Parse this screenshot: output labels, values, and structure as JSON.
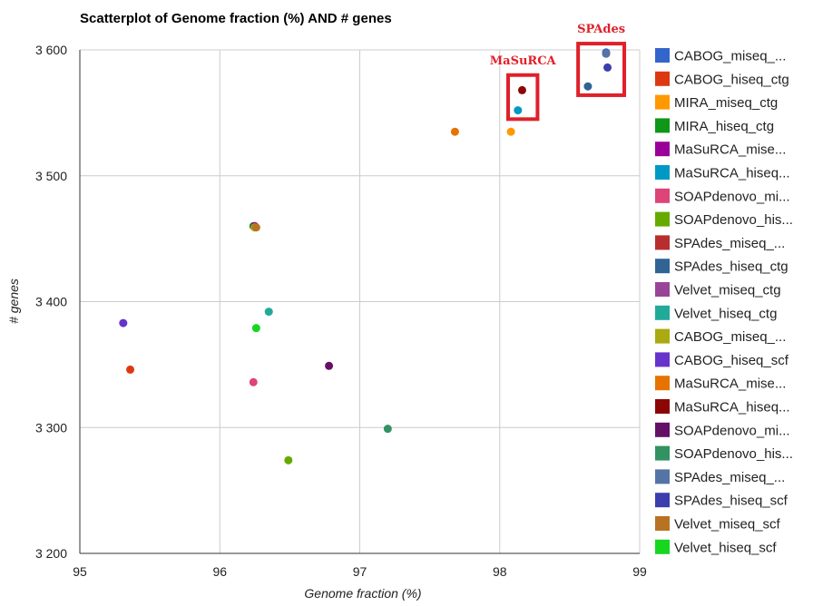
{
  "chart_data": {
    "type": "scatter",
    "title": "Scatterplot of Genome fraction (%) AND # genes",
    "xlabel": "Genome fraction (%)",
    "ylabel": "# genes",
    "xlim": [
      95,
      99
    ],
    "ylim": [
      3200,
      3600
    ],
    "x_ticks": [
      {
        "value": 95,
        "label": "95"
      },
      {
        "value": 96,
        "label": "96"
      },
      {
        "value": 97,
        "label": "97"
      },
      {
        "value": 98,
        "label": "98"
      },
      {
        "value": 99,
        "label": "99"
      }
    ],
    "y_ticks": [
      {
        "value": 3200,
        "label": "3 200"
      },
      {
        "value": 3300,
        "label": "3 300"
      },
      {
        "value": 3400,
        "label": "3 400"
      },
      {
        "value": 3500,
        "label": "3 500"
      },
      {
        "value": 3600,
        "label": "3 600"
      }
    ],
    "grid": true,
    "legend_position": "right",
    "series": [
      {
        "name": "CABOG_miseq_...",
        "color": "#3366cc",
        "x": 98.76,
        "y": 3598
      },
      {
        "name": "CABOG_hiseq_ctg",
        "color": "#dc3912",
        "x": 95.36,
        "y": 3346
      },
      {
        "name": "MIRA_miseq_ctg",
        "color": "#ff9900",
        "x": 98.08,
        "y": 3535
      },
      {
        "name": "MIRA_hiseq_ctg",
        "color": "#109618",
        "x": 96.24,
        "y": 3460
      },
      {
        "name": "MaSuRCA_mise...",
        "color": "#990099",
        "x": 96.25,
        "y": 3460
      },
      {
        "name": "MaSuRCA_hiseq...",
        "color": "#0099c6",
        "x": 98.13,
        "y": 3552
      },
      {
        "name": "SOAPdenovo_mi...",
        "color": "#dd4477",
        "x": 96.24,
        "y": 3336
      },
      {
        "name": "SOAPdenovo_his...",
        "color": "#66aa00",
        "x": 96.49,
        "y": 3274
      },
      {
        "name": "SPAdes_miseq_...",
        "color": "#b82e2e",
        "x": 98.76,
        "y": 3597
      },
      {
        "name": "SPAdes_hiseq_ctg",
        "color": "#316395",
        "x": 98.63,
        "y": 3571
      },
      {
        "name": "Velvet_miseq_ctg",
        "color": "#994499",
        "x": 96.25,
        "y": 3459
      },
      {
        "name": "Velvet_hiseq_ctg",
        "color": "#22aa99",
        "x": 96.35,
        "y": 3392
      },
      {
        "name": "CABOG_miseq_...",
        "color": "#aaaa11",
        "x": 96.25,
        "y": 3459
      },
      {
        "name": "CABOG_hiseq_scf",
        "color": "#6633cc",
        "x": 95.31,
        "y": 3383
      },
      {
        "name": "MaSuRCA_mise...",
        "color": "#e67300",
        "x": 97.68,
        "y": 3535
      },
      {
        "name": "MaSuRCA_hiseq...",
        "color": "#8b0707",
        "x": 98.16,
        "y": 3568
      },
      {
        "name": "SOAPdenovo_mi...",
        "color": "#651067",
        "x": 96.78,
        "y": 3349
      },
      {
        "name": "SOAPdenovo_his...",
        "color": "#329262",
        "x": 97.2,
        "y": 3299
      },
      {
        "name": "SPAdes_miseq_...",
        "color": "#5574a6",
        "x": 98.76,
        "y": 3597
      },
      {
        "name": "SPAdes_hiseq_scf",
        "color": "#3b3eac",
        "x": 98.77,
        "y": 3586
      },
      {
        "name": "Velvet_miseq_scf",
        "color": "#b77322",
        "x": 96.26,
        "y": 3459
      },
      {
        "name": "Velvet_hiseq_scf",
        "color": "#16d620",
        "x": 96.26,
        "y": 3379
      }
    ],
    "annotations": [
      {
        "text": "MaSuRCA",
        "box_x": [
          98.06,
          98.27
        ],
        "box_y": [
          3545,
          3580
        ]
      },
      {
        "text": "SPAdes",
        "box_x": [
          98.56,
          98.89
        ],
        "box_y": [
          3564,
          3605
        ]
      }
    ]
  }
}
